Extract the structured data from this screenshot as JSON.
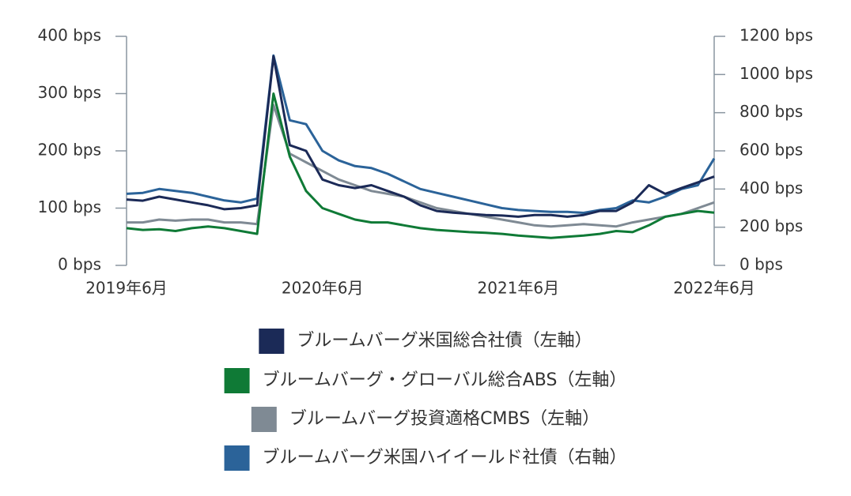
{
  "chart_data": {
    "type": "line",
    "categories": [
      "2019年6月",
      null,
      null,
      null,
      null,
      null,
      null,
      null,
      null,
      null,
      null,
      null,
      "2020年6月",
      null,
      null,
      null,
      null,
      null,
      null,
      null,
      null,
      null,
      null,
      null,
      "2021年6月",
      null,
      null,
      null,
      null,
      null,
      null,
      null,
      null,
      null,
      null,
      null,
      "2022年6月"
    ],
    "ylim": [
      0,
      400
    ],
    "yticks": [
      {
        "value": 0,
        "label": "0 bps"
      },
      {
        "value": 100,
        "label": "100 bps"
      },
      {
        "value": 200,
        "label": "200 bps"
      },
      {
        "value": 300,
        "label": "300 bps"
      },
      {
        "value": 400,
        "label": "400 bps"
      }
    ],
    "y2lim": [
      0,
      1200
    ],
    "y2ticks": [
      {
        "value": 0,
        "label": "0 bps"
      },
      {
        "value": 200,
        "label": "200 bps"
      },
      {
        "value": 400,
        "label": "400 bps"
      },
      {
        "value": 600,
        "label": "600 bps"
      },
      {
        "value": 800,
        "label": "800 bps"
      },
      {
        "value": 1000,
        "label": "1000 bps"
      },
      {
        "value": 1200,
        "label": "1200 bps"
      }
    ],
    "series": [
      {
        "name": "ブルームバーグ米国総合社債（左軸）",
        "color": "#1b2a57",
        "axis": "y",
        "values": [
          115,
          113,
          120,
          115,
          110,
          105,
          98,
          100,
          105,
          365,
          210,
          200,
          150,
          140,
          135,
          140,
          130,
          120,
          105,
          95,
          92,
          90,
          88,
          87,
          85,
          88,
          88,
          85,
          88,
          95,
          95,
          110,
          140,
          125,
          135,
          145,
          155
        ]
      },
      {
        "name": "ブルームバーグ・グローバル総合ABS（左軸）",
        "color": "#0f7a36",
        "axis": "y",
        "values": [
          65,
          62,
          63,
          60,
          65,
          68,
          65,
          60,
          55,
          300,
          190,
          130,
          100,
          90,
          80,
          75,
          75,
          70,
          65,
          62,
          60,
          58,
          57,
          55,
          52,
          50,
          48,
          50,
          52,
          55,
          60,
          58,
          70,
          85,
          90,
          95,
          92
        ]
      },
      {
        "name": "ブルームバーグ投資適格CMBS（左軸）",
        "color": "#7f8a94",
        "axis": "y",
        "values": [
          75,
          75,
          80,
          78,
          80,
          80,
          75,
          75,
          72,
          280,
          195,
          180,
          165,
          150,
          140,
          130,
          125,
          120,
          110,
          100,
          95,
          90,
          85,
          80,
          75,
          70,
          68,
          70,
          72,
          70,
          68,
          75,
          80,
          85,
          90,
          100,
          110
        ]
      },
      {
        "name": "ブルームバーグ米国ハイイールド社債（右軸）",
        "color": "#2b6399",
        "axis": "y2",
        "values": [
          375,
          380,
          400,
          390,
          380,
          360,
          340,
          330,
          350,
          1100,
          760,
          740,
          600,
          550,
          520,
          510,
          480,
          440,
          400,
          380,
          360,
          340,
          320,
          300,
          290,
          285,
          280,
          280,
          275,
          290,
          300,
          340,
          330,
          360,
          400,
          420,
          560
        ]
      }
    ]
  }
}
